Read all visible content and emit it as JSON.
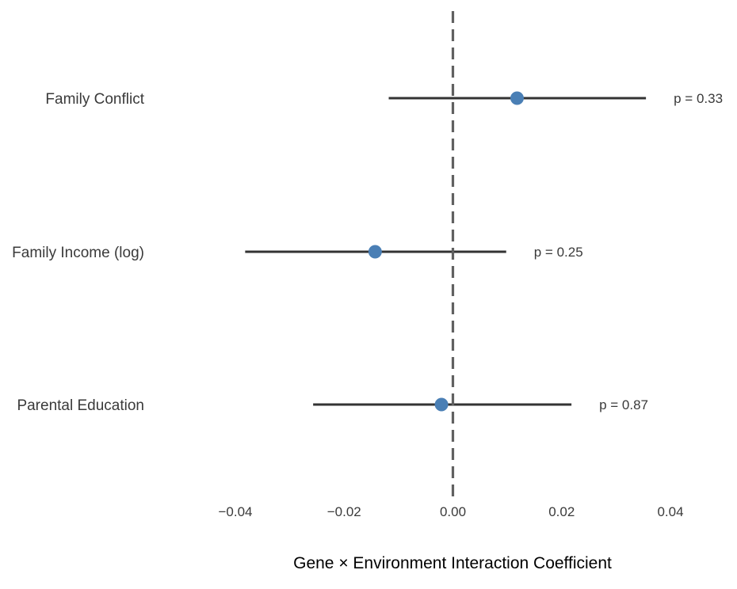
{
  "chart_data": {
    "type": "forest",
    "title": "",
    "xlabel": "Gene × Environment Interaction Coefficient",
    "ylabel": "",
    "xlim": [
      -0.04,
      0.04
    ],
    "xticks": [
      -0.04,
      -0.02,
      0.0,
      0.02,
      0.04
    ],
    "xtick_labels": [
      "−0.04",
      "−0.02",
      "0.00",
      "0.02",
      "0.04"
    ],
    "reference_line": 0,
    "grid": false,
    "legend": "none",
    "point_color": "#4a7fb5",
    "line_color": "#333333",
    "ref_line_color": "#606060",
    "categories": [
      "Family Conflict",
      "Family Income (log)",
      "Parental Education"
    ],
    "estimates": [
      0.0118,
      -0.0143,
      -0.0021
    ],
    "ci_lower": [
      -0.0118,
      -0.0382,
      -0.0257
    ],
    "ci_upper": [
      0.0355,
      0.0098,
      0.0218
    ],
    "p_labels": [
      "p = 0.33",
      "p = 0.25",
      "p = 0.87"
    ]
  }
}
